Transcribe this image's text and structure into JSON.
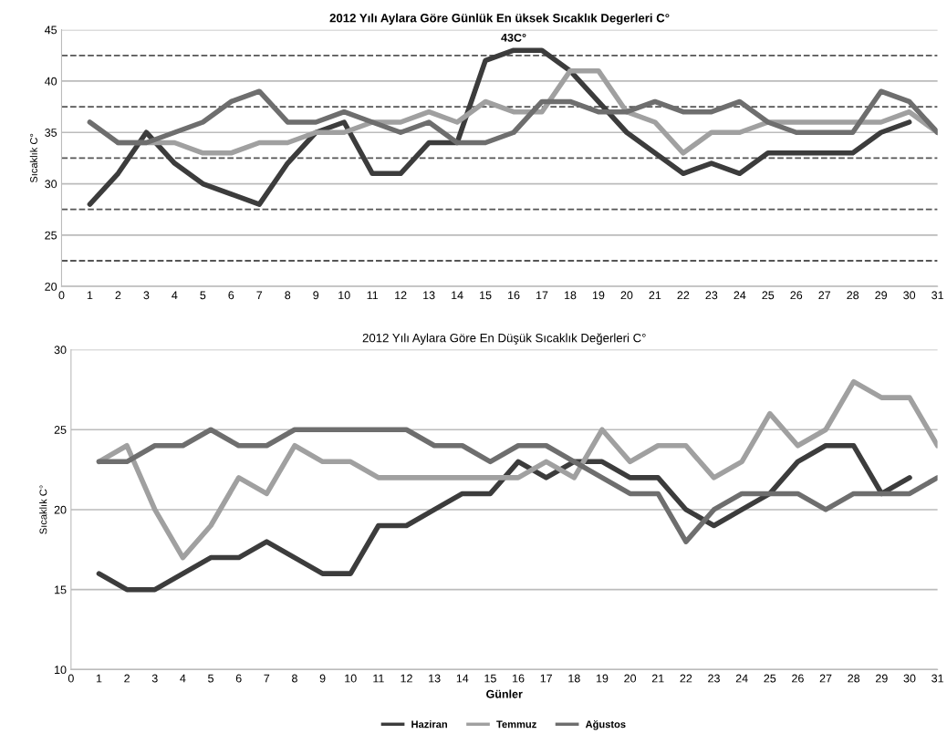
{
  "chart_data": [
    {
      "type": "line",
      "title": "2012 Yılı Aylara Göre Günlük En üksek Sıcaklık Degerleri C°",
      "ylabel": "Sıcaklık C°",
      "x": [
        1,
        2,
        3,
        4,
        5,
        6,
        7,
        8,
        9,
        10,
        11,
        12,
        13,
        14,
        15,
        16,
        17,
        18,
        19,
        20,
        21,
        22,
        23,
        24,
        25,
        26,
        27,
        28,
        29,
        30,
        31
      ],
      "xlim": [
        0,
        31
      ],
      "xticks": [
        0,
        1,
        2,
        3,
        4,
        5,
        6,
        7,
        8,
        9,
        10,
        11,
        12,
        13,
        14,
        15,
        16,
        17,
        18,
        19,
        20,
        21,
        22,
        23,
        24,
        25,
        26,
        27,
        28,
        29,
        30,
        31
      ],
      "ylim": [
        20,
        45
      ],
      "yticks": [
        20,
        25,
        30,
        35,
        40,
        45
      ],
      "grid": "y",
      "legend": false,
      "marker": "none",
      "line_style": "solid",
      "annotations": [
        {
          "text": "43C°",
          "x": 16,
          "y": 43
        }
      ],
      "ref_lines": [
        {
          "axis": "y",
          "value": 22.5,
          "color": "#555555",
          "line_style": "dashed"
        },
        {
          "axis": "y",
          "value": 27.5,
          "color": "#555555",
          "line_style": "dashed"
        },
        {
          "axis": "y",
          "value": 32.5,
          "color": "#555555",
          "line_style": "dashed"
        },
        {
          "axis": "y",
          "value": 37.5,
          "color": "#555555",
          "line_style": "dashed"
        },
        {
          "axis": "y",
          "value": 42.5,
          "color": "#555555",
          "line_style": "dashed"
        }
      ],
      "series": [
        {
          "color": "#3c3c3c",
          "values": [
            28,
            31,
            35,
            32,
            30,
            29,
            28,
            32,
            35,
            36,
            31,
            31,
            34,
            34,
            42,
            43,
            43,
            41,
            38,
            35,
            33,
            31,
            32,
            31,
            33,
            33,
            33,
            33,
            35,
            36,
            null
          ]
        },
        {
          "color": "#a0a0a0",
          "values": [
            null,
            34,
            34,
            34,
            33,
            33,
            34,
            34,
            35,
            35,
            36,
            36,
            37,
            36,
            38,
            37,
            37,
            41,
            41,
            37,
            36,
            33,
            35,
            35,
            36,
            36,
            36,
            36,
            36,
            37,
            35
          ]
        },
        {
          "color": "#6e6e6e",
          "values": [
            36,
            34,
            34,
            35,
            36,
            38,
            39,
            36,
            36,
            37,
            36,
            35,
            36,
            34,
            34,
            35,
            38,
            38,
            37,
            37,
            38,
            37,
            37,
            38,
            36,
            35,
            35,
            35,
            39,
            38,
            35
          ]
        }
      ]
    },
    {
      "type": "line",
      "title": "2012 Yılı Aylara Göre En Düşük Sıcaklık Değerleri C°",
      "ylabel": "Sıcaklık C°",
      "xlabel": "Günler",
      "x": [
        1,
        2,
        3,
        4,
        5,
        6,
        7,
        8,
        9,
        10,
        11,
        12,
        13,
        14,
        15,
        16,
        17,
        18,
        19,
        20,
        21,
        22,
        23,
        24,
        25,
        26,
        27,
        28,
        29,
        30,
        31
      ],
      "xlim": [
        0,
        31
      ],
      "xticks": [
        0,
        1,
        2,
        3,
        4,
        5,
        6,
        7,
        8,
        9,
        10,
        11,
        12,
        13,
        14,
        15,
        16,
        17,
        18,
        19,
        20,
        21,
        22,
        23,
        24,
        25,
        26,
        27,
        28,
        29,
        30,
        31
      ],
      "ylim": [
        10,
        30
      ],
      "yticks": [
        10,
        15,
        20,
        25,
        30
      ],
      "grid": "y",
      "legend": "bottom",
      "marker": "none",
      "line_style": "solid",
      "series": [
        {
          "name": "Haziran",
          "color": "#3c3c3c",
          "values": [
            16,
            15,
            15,
            16,
            17,
            17,
            18,
            17,
            16,
            16,
            19,
            19,
            20,
            21,
            21,
            23,
            22,
            23,
            23,
            22,
            22,
            20,
            19,
            20,
            21,
            23,
            24,
            24,
            21,
            22,
            null
          ]
        },
        {
          "name": "Temmuz",
          "color": "#a0a0a0",
          "values": [
            23,
            24,
            20,
            17,
            19,
            22,
            21,
            24,
            23,
            23,
            22,
            22,
            22,
            22,
            22,
            22,
            23,
            22,
            25,
            23,
            24,
            24,
            22,
            23,
            26,
            24,
            25,
            28,
            27,
            27,
            24
          ]
        },
        {
          "name": "Ağustos",
          "color": "#6e6e6e",
          "values": [
            23,
            23,
            24,
            24,
            25,
            24,
            24,
            25,
            25,
            25,
            25,
            25,
            24,
            24,
            23,
            24,
            24,
            23,
            22,
            21,
            21,
            18,
            20,
            21,
            21,
            21,
            20,
            21,
            21,
            21,
            22
          ]
        }
      ]
    }
  ]
}
